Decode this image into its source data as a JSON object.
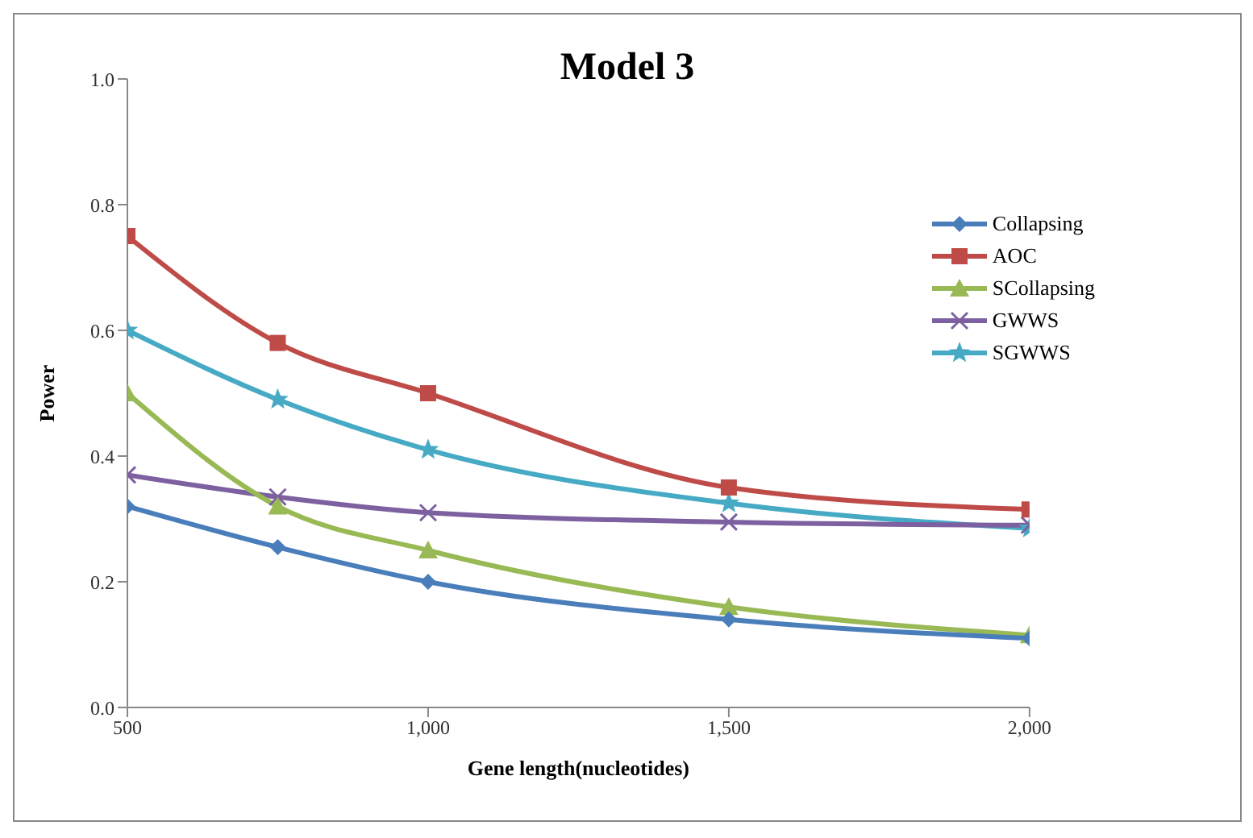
{
  "chart_data": {
    "type": "line",
    "title": "Model 3",
    "xlabel": "Gene length(nucleotides)",
    "ylabel": "Power",
    "x": [
      500,
      750,
      1000,
      1500,
      2000
    ],
    "series": [
      {
        "name": "Collapsing",
        "color": "#4a7ebb",
        "marker": "diamond",
        "values": [
          0.32,
          0.255,
          0.2,
          0.14,
          0.11
        ]
      },
      {
        "name": "AOC",
        "color": "#be4b48",
        "marker": "square",
        "values": [
          0.75,
          0.58,
          0.5,
          0.35,
          0.315
        ]
      },
      {
        "name": "SCollapsing",
        "color": "#98b954",
        "marker": "triangle",
        "values": [
          0.5,
          0.32,
          0.25,
          0.16,
          0.115
        ]
      },
      {
        "name": "GWWS",
        "color": "#7d60a0",
        "marker": "cross",
        "values": [
          0.37,
          0.335,
          0.31,
          0.295,
          0.29
        ]
      },
      {
        "name": "SGWWS",
        "color": "#46aac5",
        "marker": "star",
        "values": [
          0.6,
          0.49,
          0.41,
          0.325,
          0.285
        ]
      }
    ],
    "xlim": [
      500,
      2000
    ],
    "xticks": [
      500,
      {
        "value": 1000,
        "label": "1,000"
      },
      {
        "value": 1500,
        "label": "1,500"
      },
      {
        "value": 2000,
        "label": "2,000"
      }
    ],
    "ylim": [
      0,
      1
    ],
    "yticks": [
      {
        "value": 0,
        "label": "0.0"
      },
      0.2,
      0.4,
      0.6,
      0.8,
      {
        "value": 1,
        "label": "1.0"
      }
    ],
    "grid": false,
    "legend": "top right",
    "line_style": "solid"
  }
}
